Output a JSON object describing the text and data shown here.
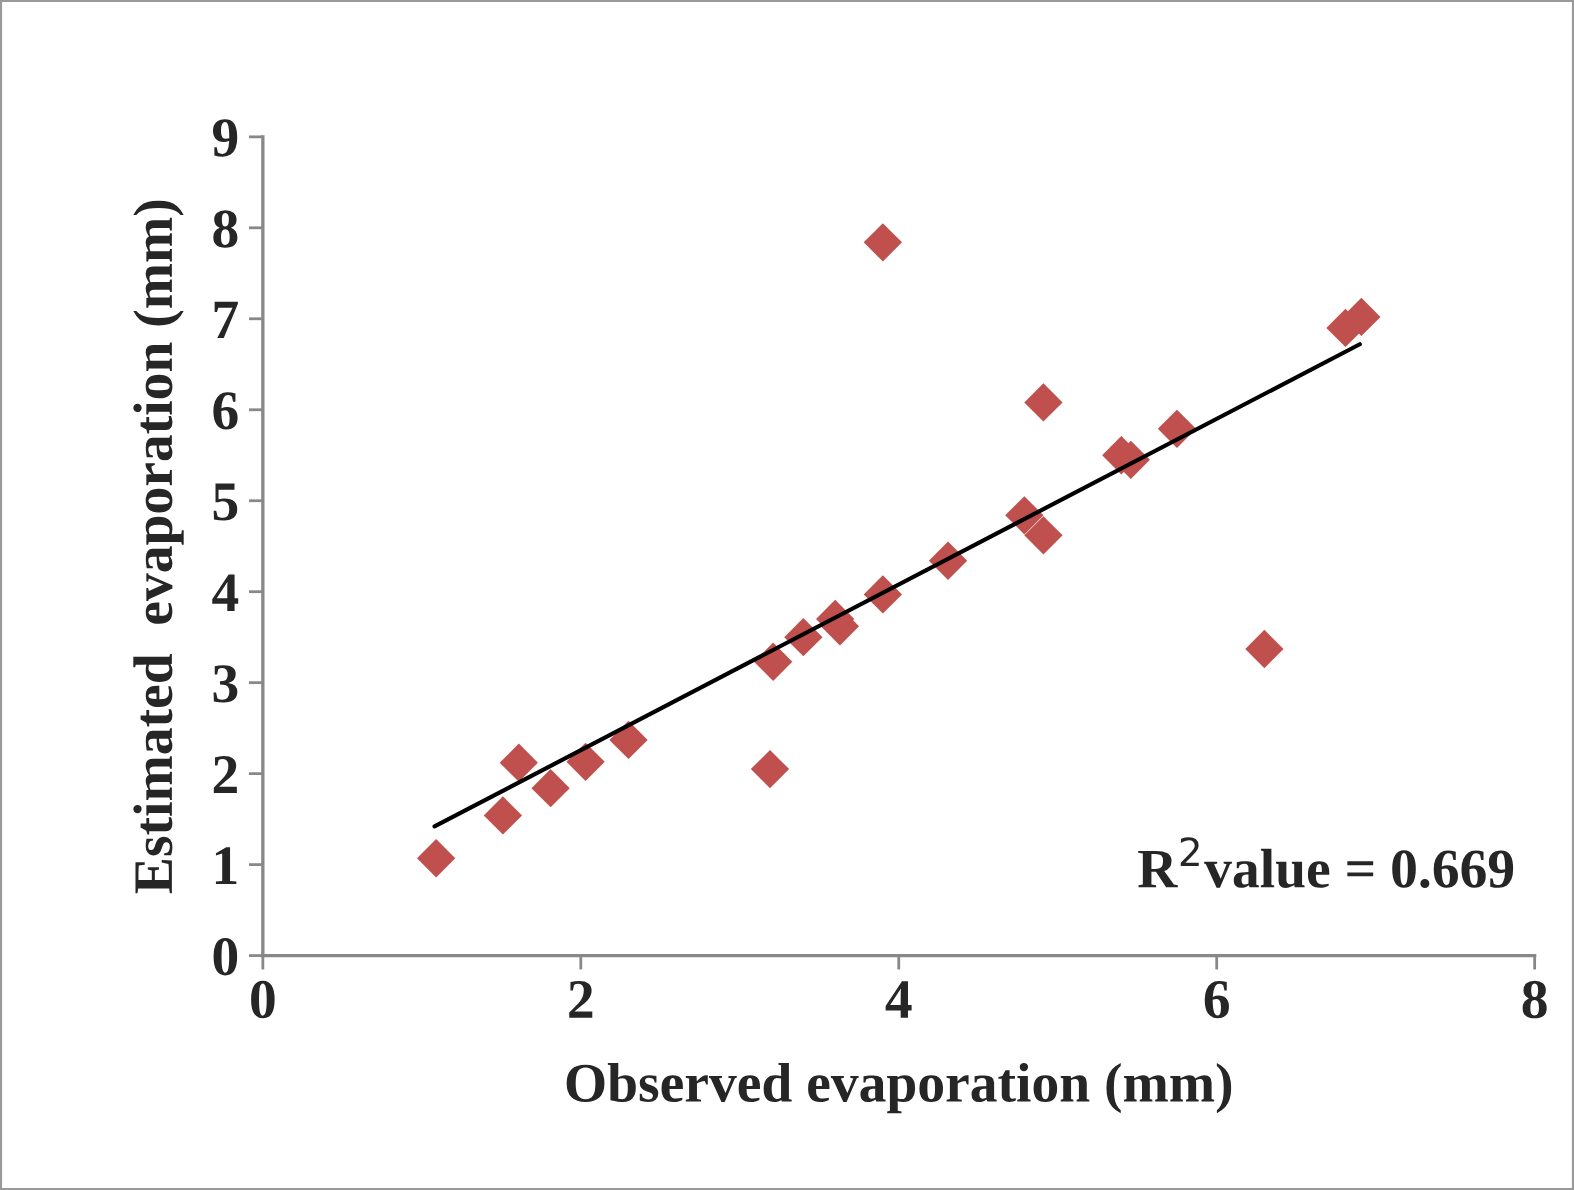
{
  "chart_data": {
    "type": "scatter",
    "xlabel": "Observed evaporation (mm)",
    "ylabel": "Estimated  evaporation (mm)",
    "xlim": [
      0,
      8
    ],
    "xticks": [
      0,
      2,
      4,
      6,
      8
    ],
    "ylim": [
      0,
      9
    ],
    "yticks": [
      0,
      1,
      2,
      3,
      4,
      5,
      6,
      7,
      8,
      9
    ],
    "grid": false,
    "legend": false,
    "marker": "diamond",
    "series": [
      {
        "color": "#c0504d",
        "x": [
          1.09,
          1.51,
          1.61,
          1.81,
          2.03,
          2.3,
          3.21,
          3.19,
          3.4,
          3.6,
          3.63,
          3.9,
          3.9,
          4.31,
          4.79,
          4.91,
          4.91,
          5.4,
          5.46,
          5.75,
          6.3,
          6.81,
          6.91
        ],
        "values": [
          1.07,
          1.54,
          2.12,
          1.84,
          2.13,
          2.37,
          3.23,
          2.05,
          3.5,
          3.7,
          3.62,
          3.97,
          7.84,
          4.34,
          4.84,
          4.62,
          6.08,
          5.5,
          5.45,
          5.79,
          3.37,
          6.9,
          7.02
        ]
      },
      {
        "type": "line",
        "color": "#000000",
        "marker": "none",
        "x": [
          1.08,
          6.9
        ],
        "values": [
          1.42,
          6.72
        ]
      }
    ],
    "annotations": [
      "R$^{2}$value = 0.669"
    ]
  }
}
